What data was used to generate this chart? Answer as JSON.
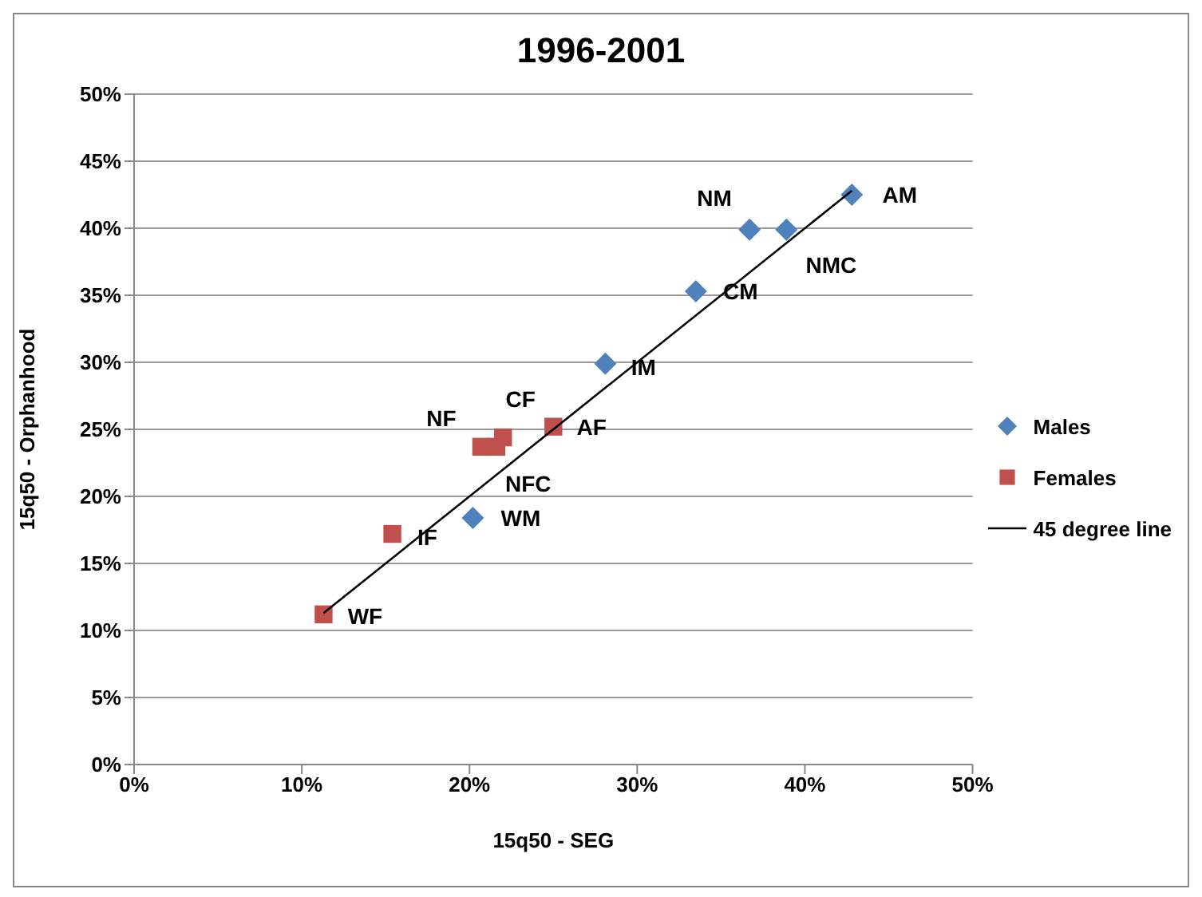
{
  "chart_data": {
    "type": "scatter",
    "title": "1996-2001",
    "xlabel": "15q50 - SEG",
    "ylabel": "15q50 - Orphanhood",
    "xlim": [
      0,
      50
    ],
    "ylim": [
      0,
      50
    ],
    "xticks": [
      {
        "value": 0,
        "label": "0%"
      },
      {
        "value": 10,
        "label": "10%"
      },
      {
        "value": 20,
        "label": "20%"
      },
      {
        "value": 30,
        "label": "30%"
      },
      {
        "value": 40,
        "label": "40%"
      },
      {
        "value": 50,
        "label": "50%"
      }
    ],
    "yticks": [
      {
        "value": 0,
        "label": "0%"
      },
      {
        "value": 5,
        "label": "5%"
      },
      {
        "value": 10,
        "label": "10%"
      },
      {
        "value": 15,
        "label": "15%"
      },
      {
        "value": 20,
        "label": "20%"
      },
      {
        "value": 25,
        "label": "25%"
      },
      {
        "value": 30,
        "label": "30%"
      },
      {
        "value": 35,
        "label": "35%"
      },
      {
        "value": 40,
        "label": "40%"
      },
      {
        "value": 45,
        "label": "45%"
      },
      {
        "value": 50,
        "label": "50%"
      }
    ],
    "grid": "y",
    "legend": "right",
    "series": [
      {
        "name": "Males",
        "color": "#4f81bd",
        "marker": "diamond",
        "x": [
          42.8,
          36.7,
          38.9,
          33.5,
          28.1,
          20.2
        ],
        "values": [
          42.5,
          39.9,
          39.9,
          35.3,
          29.9,
          18.4
        ]
      },
      {
        "name": "Females",
        "color": "#c0504d",
        "marker": "square",
        "x": [
          20.7,
          22.0,
          25.0,
          21.6,
          15.4,
          11.3
        ],
        "values": [
          23.7,
          24.4,
          25.2,
          23.7,
          17.2,
          11.2
        ]
      },
      {
        "name": "45 degree line",
        "type": "line",
        "color": "#000000",
        "marker": "none",
        "x": [
          11.3,
          42.8
        ],
        "values": [
          11.3,
          42.8
        ]
      }
    ],
    "annotations": [
      {
        "text": "AM",
        "x": 42.8,
        "y": 42.5
      },
      {
        "text": "NM",
        "x": 36.7,
        "y": 39.9
      },
      {
        "text": "NMC",
        "x": 38.9,
        "y": 39.9
      },
      {
        "text": "CM",
        "x": 33.5,
        "y": 35.3
      },
      {
        "text": "IM",
        "x": 28.1,
        "y": 29.9
      },
      {
        "text": "NF",
        "x": 20.7,
        "y": 23.7
      },
      {
        "text": "CF",
        "x": 22.0,
        "y": 24.4
      },
      {
        "text": "AF",
        "x": 25.0,
        "y": 25.2
      },
      {
        "text": "NFC",
        "x": 21.6,
        "y": 23.7
      },
      {
        "text": "IF",
        "x": 15.4,
        "y": 17.2
      },
      {
        "text": "WM",
        "x": 20.2,
        "y": 18.4
      },
      {
        "text": "WF",
        "x": 11.3,
        "y": 11.2
      }
    ]
  }
}
